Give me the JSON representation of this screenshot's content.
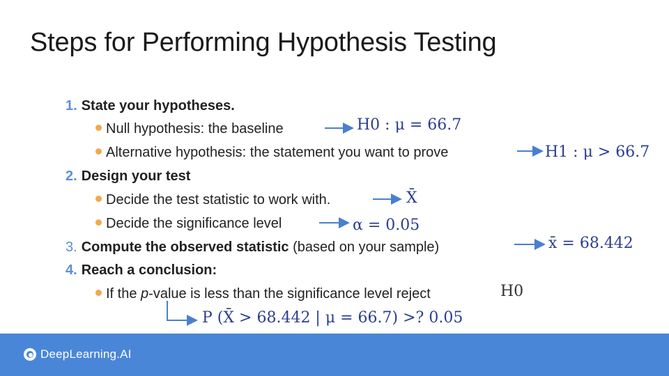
{
  "title": "Steps for Performing Hypothesis Testing",
  "steps": [
    {
      "number": "1.",
      "heading": "State your hypotheses.",
      "bullets": [
        {
          "text": "Null hypothesis: the baseline",
          "math": "H0 : μ = 66.7"
        },
        {
          "text": "Alternative hypothesis: the statement you want to prove",
          "math": "H1 : μ > 66.7"
        }
      ]
    },
    {
      "number": "2.",
      "heading": "Design your test",
      "bullets": [
        {
          "text": "Decide the test statistic to work with.",
          "math": "X̄"
        },
        {
          "text": "Decide the significance level",
          "math": "α = 0.05"
        }
      ]
    },
    {
      "number": "3.",
      "heading": "Compute the observed statistic",
      "note": "(based on your sample)",
      "math": "x̄ = 68.442"
    },
    {
      "number": "4.",
      "heading": "Reach a conclusion:",
      "bullets": [
        {
          "text_before": "If the ",
          "text_italic": "p",
          "text_after": "-value is less than the significance level reject",
          "math": "H0"
        }
      ],
      "formula": "P (X̄ > 68.442 | μ = 66.7) >? 0.05"
    }
  ],
  "brand": "DeepLearning.AI",
  "colors": {
    "accent": "#5b8fd6",
    "bullet": "#f2a94a",
    "footer": "#4a86d8",
    "math": "#2d3e8e"
  }
}
